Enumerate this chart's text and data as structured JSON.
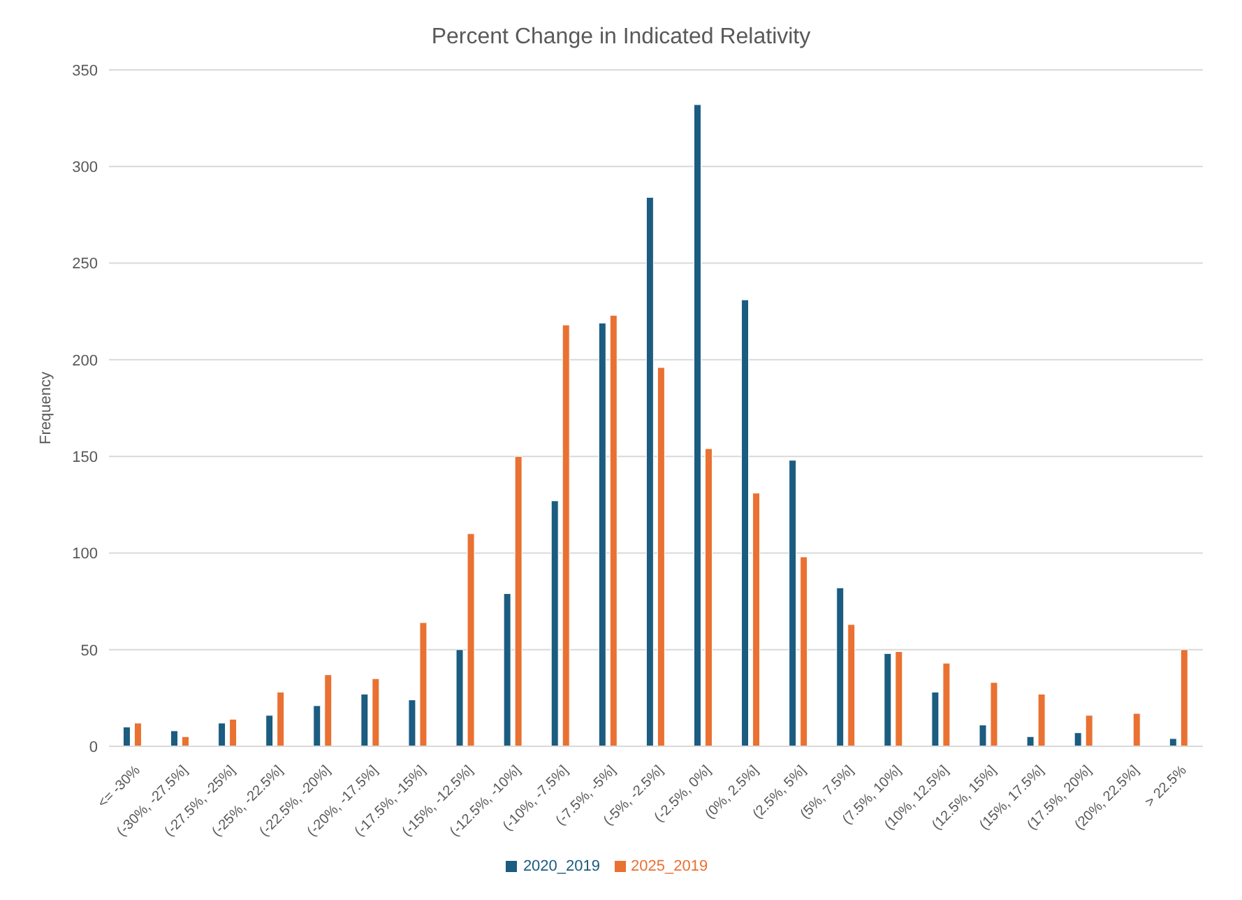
{
  "chart_data": {
    "type": "bar",
    "title": "Percent Change in Indicated Relativity",
    "ylabel": "Frequency",
    "categories": [
      "<= -30%",
      "(-30%, -27.5%]",
      "(-27.5%, -25%]",
      "(-25%, -22.5%]",
      "(-22.5%, -20%]",
      "(-20%, -17.5%]",
      "(-17.5%, -15%]",
      "(-15%, -12.5%]",
      "(-12.5%, -10%]",
      "(-10%, -7.5%]",
      "(-7.5%, -5%]",
      "(-5%, -2.5%]",
      "(-2.5%, 0%]",
      "(0%, 2.5%]",
      "(2.5%, 5%]",
      "(5%, 7.5%]",
      "(7.5%, 10%]",
      "(10%, 12.5%]",
      "(12.5%, 15%]",
      "(15%, 17.5%]",
      "(17.5%, 20%]",
      "(20%, 22.5%]",
      "> 22.5%"
    ],
    "series": [
      {
        "name": "2020_2019",
        "color": "#1b5c80",
        "values": [
          10,
          8,
          12,
          16,
          21,
          27,
          24,
          50,
          79,
          127,
          219,
          284,
          332,
          231,
          148,
          82,
          48,
          28,
          11,
          5,
          7,
          0,
          4
        ]
      },
      {
        "name": "2025_2019",
        "color": "#e97132",
        "values": [
          12,
          5,
          14,
          28,
          37,
          35,
          64,
          110,
          150,
          218,
          223,
          196,
          154,
          131,
          98,
          63,
          49,
          43,
          33,
          27,
          16,
          17,
          50
        ]
      }
    ],
    "ylim": [
      0,
      350
    ],
    "yticks": [
      0,
      50,
      100,
      150,
      200,
      250,
      300,
      350
    ],
    "grid": "y",
    "legend": "bottom"
  }
}
